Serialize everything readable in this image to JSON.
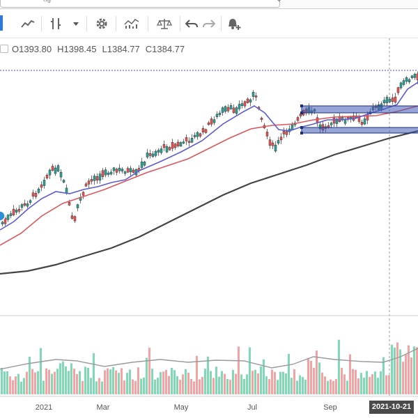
{
  "window": {
    "top_text": "ng"
  },
  "toolbar": {
    "buttons": [
      {
        "name": "chart-type-line-button",
        "icon": "line-chart-icon"
      },
      {
        "name": "chart-type-candles-button",
        "icon": "candlestick-icon"
      },
      {
        "name": "chart-type-dropdown-button",
        "icon": "caret-down-icon"
      },
      {
        "name": "settings-button",
        "icon": "gear-icon"
      },
      {
        "name": "indicators-button",
        "icon": "indicators-icon"
      },
      {
        "name": "compare-button",
        "icon": "scale-icon"
      },
      {
        "name": "undo-button",
        "icon": "undo-arrow-icon"
      },
      {
        "name": "redo-button",
        "icon": "redo-arrow-icon"
      },
      {
        "name": "alert-button",
        "icon": "bell-plus-icon"
      }
    ]
  },
  "ohlc": {
    "open": "O1393.80",
    "high": "H1398.45",
    "low": "L1384.77",
    "close": "C1384.77"
  },
  "x_axis": {
    "labels": [
      "2021",
      "Mar",
      "May",
      "Jul",
      "Sep"
    ],
    "crosshair_date": "2021-10-21"
  },
  "colors": {
    "up": "#26a69a",
    "down": "#ef5350",
    "ma_fast": "#5a5ad8",
    "ma_mid": "#e0555a",
    "ma_slow": "#444444",
    "zone": "#3f5bb5"
  },
  "chart_data": {
    "type": "candlestick",
    "last_bar": {
      "open": 1393.8,
      "high": 1398.45,
      "low": 1384.77,
      "close": 1384.77
    },
    "crosshair_date": "2021-10-21",
    "series": [
      {
        "kind": "price"
      },
      {
        "kind": "moving_average_fast"
      },
      {
        "kind": "moving_average_mid"
      },
      {
        "kind": "moving_average_slow"
      },
      {
        "kind": "volume"
      }
    ],
    "annotations": [
      "two horizontal rectangle zones (support/resistance)"
    ],
    "grid": false
  }
}
